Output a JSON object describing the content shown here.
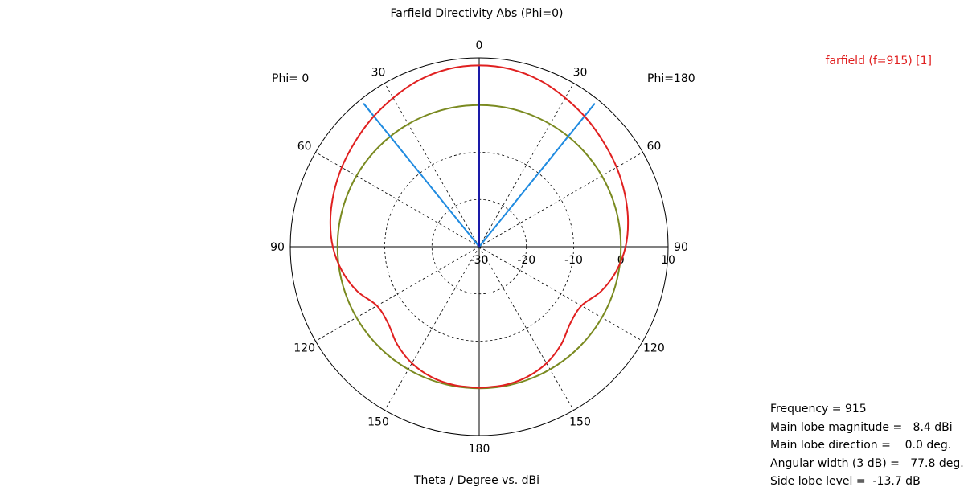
{
  "chart_data": {
    "type": "polar",
    "title": "Farfield Directivity Abs (Phi=0)",
    "xlabel": "Theta / Degree vs. dBi",
    "phi_left_label": "Phi=  0",
    "phi_right_label": "Phi=180",
    "radial_axis": {
      "unit": "dBi",
      "range": [
        -30,
        10
      ],
      "ticks": [
        -30,
        -20,
        -10,
        0,
        10
      ],
      "tick_labels": [
        "-30",
        "-20",
        "-10",
        "0",
        "10"
      ]
    },
    "angle_tick_labels": {
      "left": [
        "0",
        "30",
        "60",
        "90",
        "120",
        "150",
        "180"
      ],
      "right": [
        "30",
        "60",
        "90",
        "120",
        "150"
      ]
    },
    "angle_ticks": [
      0,
      30,
      60,
      90,
      120,
      150,
      180
    ],
    "grid": true,
    "legend_position": "top-right",
    "series": [
      {
        "name": "farfield (f=915) [1]",
        "color": "#e02020",
        "theta_deg": [
          0,
          10,
          20,
          30,
          40,
          50,
          60,
          70,
          80,
          90,
          100,
          110,
          120,
          130,
          140,
          150,
          160,
          170,
          180
        ],
        "directivity_dBi": [
          8.4,
          8.2,
          7.5,
          6.4,
          5.4,
          4.4,
          3.6,
          2.8,
          2.0,
          1.0,
          -0.5,
          -2.5,
          -5.0,
          -4.8,
          -3.0,
          -1.5,
          -0.6,
          -0.2,
          -0.1
        ]
      }
    ],
    "reference_circle": {
      "value_dBi": 0,
      "color": "#7a8a20"
    },
    "main_lobe_line": {
      "theta_deg": 0,
      "color": "#1a1aa8"
    },
    "beamwidth_lines": {
      "theta_deg": [
        -38.9,
        38.9
      ],
      "color": "#1e8ae0"
    }
  },
  "info": {
    "frequency": "Frequency = 915",
    "main_lobe_magnitude": "Main lobe magnitude =   8.4 dBi",
    "main_lobe_direction": "Main lobe direction =    0.0 deg.",
    "angular_width": "Angular width (3 dB) =   77.8 deg.",
    "side_lobe_level": "Side lobe level =  -13.7 dB"
  }
}
